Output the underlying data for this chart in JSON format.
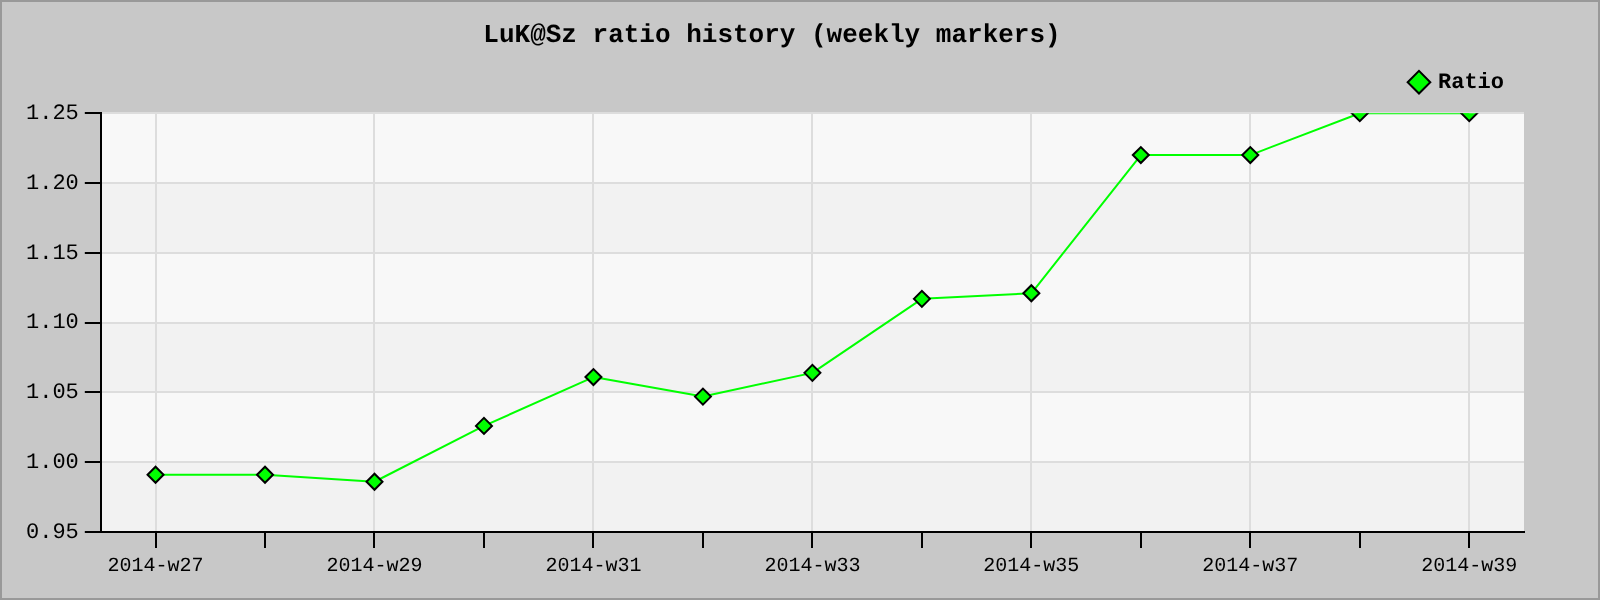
{
  "chart_data": {
    "type": "line",
    "title": "LuK@Sz ratio history (weekly markers)",
    "categories": [
      "2014-w27",
      null,
      "2014-w29",
      null,
      "2014-w31",
      null,
      "2014-w33",
      null,
      "2014-w35",
      null,
      "2014-w37",
      null,
      "2014-w39"
    ],
    "series": [
      {
        "name": "Ratio",
        "color": "#00ff00",
        "values": [
          0.991,
          0.991,
          0.986,
          1.026,
          1.061,
          1.047,
          1.064,
          1.117,
          1.121,
          1.22,
          1.22,
          1.25,
          1.25
        ]
      }
    ],
    "ylim": [
      0.95,
      1.25
    ],
    "yticks": [
      0.95,
      {
        "value": 1,
        "label": "1.00"
      },
      1.05,
      {
        "value": 1.1,
        "label": "1.10"
      },
      1.15,
      {
        "value": 1.2,
        "label": "1.20"
      },
      1.25
    ],
    "grid": true,
    "legend": "top right",
    "marker": "diamond",
    "line_style": "solid"
  }
}
